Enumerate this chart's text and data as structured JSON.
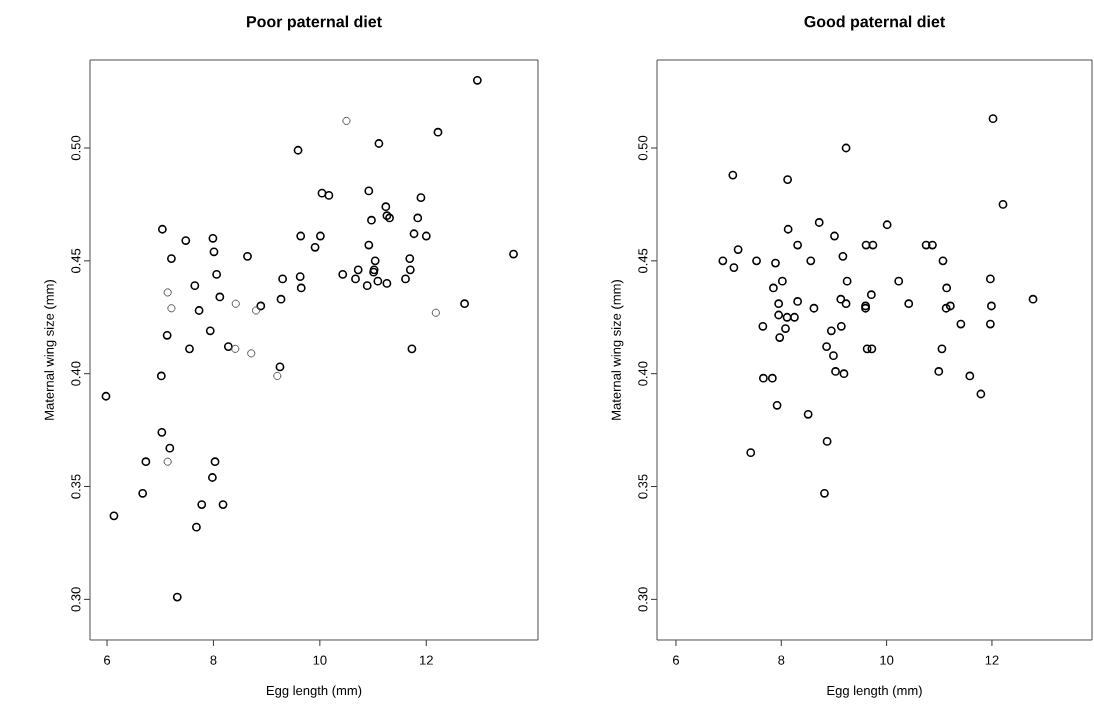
{
  "chart_data": [
    {
      "type": "scatter",
      "title": "Poor paternal diet",
      "xlabel": "Egg length (mm)",
      "ylabel": "Maternal wing size (mm)",
      "marker": "circle",
      "xlim": [
        5.68,
        14.1
      ],
      "ylim": [
        0.282,
        0.539
      ],
      "xticks": [
        6,
        8,
        10,
        12
      ],
      "yticks": [
        {
          "value": 0.3,
          "label": "0.30"
        },
        {
          "value": 0.35,
          "label": "0.35"
        },
        {
          "value": 0.4,
          "label": "0.40"
        },
        {
          "value": 0.45,
          "label": "0.45"
        },
        {
          "value": 0.5,
          "label": "0.50"
        }
      ],
      "series": [
        {
          "color": "#000000",
          "x": [
            5.98,
            6.13,
            6.67,
            6.73,
            7.03,
            7.18,
            7.02,
            7.55,
            7.32,
            7.68,
            7.78,
            8.18,
            7.98,
            8.03,
            8.28,
            9.25,
            9.59,
            7.04,
            7.48,
            7.99,
            8.01,
            7.21,
            8.64,
            9.64,
            9.91,
            8.06,
            9.3,
            9.63,
            9.65,
            7.65,
            8.12,
            8.89,
            9.27,
            7.73,
            7.13,
            7.94,
            12.96,
            12.22,
            11.11,
            10.04,
            10.17,
            10.92,
            11.9,
            11.24,
            11.26,
            11.31,
            10.97,
            11.84,
            10.01,
            11.77,
            12.0,
            10.92,
            11.04,
            11.69,
            13.64,
            11.02,
            11.01,
            10.72,
            10.43,
            10.67,
            10.89,
            11.09,
            11.26,
            11.61,
            11.7,
            12.72,
            11.73
          ],
          "values": [
            0.39,
            0.337,
            0.347,
            0.361,
            0.374,
            0.367,
            0.399,
            0.411,
            0.301,
            0.332,
            0.342,
            0.342,
            0.354,
            0.361,
            0.412,
            0.403,
            0.499,
            0.464,
            0.459,
            0.46,
            0.454,
            0.451,
            0.452,
            0.461,
            0.456,
            0.444,
            0.442,
            0.443,
            0.438,
            0.439,
            0.434,
            0.43,
            0.433,
            0.428,
            0.417,
            0.419,
            0.53,
            0.507,
            0.502,
            0.48,
            0.479,
            0.481,
            0.478,
            0.474,
            0.47,
            0.469,
            0.468,
            0.469,
            0.461,
            0.462,
            0.461,
            0.457,
            0.45,
            0.451,
            0.453,
            0.446,
            0.445,
            0.446,
            0.444,
            0.442,
            0.439,
            0.441,
            0.44,
            0.442,
            0.446,
            0.431,
            0.411
          ]
        },
        {
          "color": "#555555",
          "x": [
            7.14,
            8.41,
            8.71,
            9.2,
            7.14,
            8.42,
            8.8,
            7.21,
            10.5,
            12.18
          ],
          "values": [
            0.361,
            0.411,
            0.409,
            0.399,
            0.436,
            0.431,
            0.428,
            0.429,
            0.512,
            0.427
          ]
        }
      ]
    },
    {
      "type": "scatter",
      "title": "Good paternal diet",
      "xlabel": "Egg length (mm)",
      "ylabel": "Maternal wing size (mm)",
      "marker": "circle",
      "xlim": [
        5.64,
        13.9
      ],
      "ylim": [
        0.282,
        0.539
      ],
      "xticks": [
        6,
        8,
        10,
        12
      ],
      "yticks": [
        {
          "value": 0.3,
          "label": "0.30"
        },
        {
          "value": 0.35,
          "label": "0.35"
        },
        {
          "value": 0.4,
          "label": "0.40"
        },
        {
          "value": 0.45,
          "label": "0.45"
        },
        {
          "value": 0.5,
          "label": "0.50"
        }
      ],
      "series": [
        {
          "color": "#000000",
          "x": [
            9.23,
            7.08,
            8.12,
            8.72,
            8.13,
            9.01,
            8.31,
            9.17,
            7.18,
            6.89,
            7.1,
            7.53,
            7.89,
            8.56,
            9.25,
            8.02,
            7.85,
            8.31,
            7.95,
            9.13,
            9.23,
            8.62,
            7.95,
            8.11,
            8.25,
            7.65,
            8.08,
            9.14,
            8.95,
            7.97,
            8.86,
            8.99,
            9.71,
            9.6,
            9.6,
            9.63,
            9.72,
            9.03,
            9.19,
            7.66,
            7.83,
            7.92,
            8.51,
            8.87,
            7.42,
            8.82,
            10.99,
            11.58,
            11.79,
            11.05,
            12.02,
            12.21,
            10.01,
            9.61,
            9.74,
            10.75,
            10.87,
            11.07,
            10.23,
            11.97,
            11.14,
            10.42,
            12.78,
            11.13,
            11.21,
            11.99,
            11.41,
            11.97
          ],
          "values": [
            0.5,
            0.488,
            0.486,
            0.467,
            0.464,
            0.461,
            0.457,
            0.452,
            0.455,
            0.45,
            0.447,
            0.45,
            0.449,
            0.45,
            0.441,
            0.441,
            0.438,
            0.432,
            0.431,
            0.433,
            0.431,
            0.429,
            0.426,
            0.425,
            0.425,
            0.421,
            0.42,
            0.421,
            0.419,
            0.416,
            0.412,
            0.408,
            0.435,
            0.43,
            0.429,
            0.411,
            0.411,
            0.401,
            0.4,
            0.398,
            0.398,
            0.386,
            0.382,
            0.37,
            0.365,
            0.347,
            0.401,
            0.399,
            0.391,
            0.411,
            0.513,
            0.475,
            0.466,
            0.457,
            0.457,
            0.457,
            0.457,
            0.45,
            0.441,
            0.442,
            0.438,
            0.431,
            0.433,
            0.429,
            0.43,
            0.43,
            0.422,
            0.422
          ]
        }
      ]
    }
  ]
}
